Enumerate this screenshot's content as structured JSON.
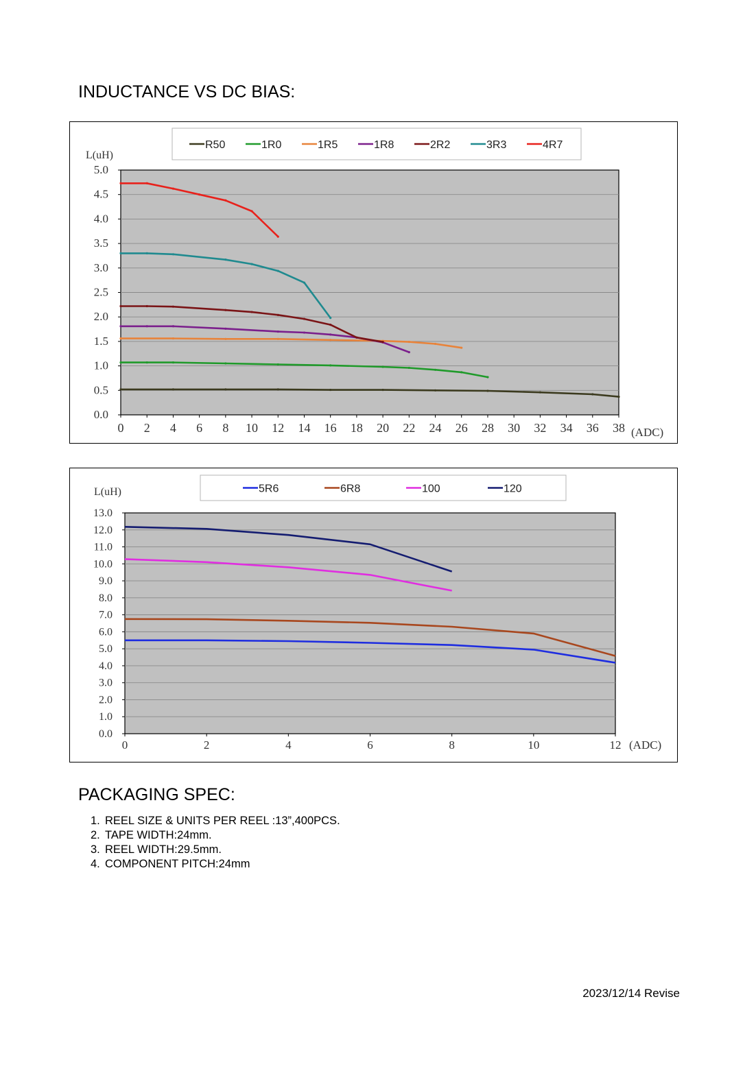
{
  "page": {
    "section1_title": "INDUCTANCE VS DC BIAS:",
    "section2_title": "PACKAGING SPEC:",
    "packaging_items": [
      {
        "num": "1.",
        "text": "REEL SIZE & UNITS PER REEL :13”,400PCS."
      },
      {
        "num": "2.",
        "text": "TAPE WIDTH:24mm."
      },
      {
        "num": "3.",
        "text": "REEL WIDTH:29.5mm."
      },
      {
        "num": "4.",
        "text": "COMPONENT PITCH:24mm"
      }
    ],
    "revise_note": "2023/12/14 Revise"
  },
  "chart_data": [
    {
      "type": "line",
      "ylabel": "L(uH)",
      "xlabel": "(ADC)",
      "xlim": [
        0,
        38
      ],
      "ylim": [
        0,
        5
      ],
      "x_ticks": [
        0,
        2,
        4,
        6,
        8,
        10,
        12,
        14,
        16,
        18,
        20,
        22,
        24,
        26,
        28,
        30,
        32,
        34,
        36,
        38
      ],
      "y_ticks": [
        "0.0",
        "0.5",
        "1.0",
        "1.5",
        "2.0",
        "2.5",
        "3.0",
        "3.5",
        "4.0",
        "4.5",
        "5.0"
      ],
      "grid": true,
      "plot_background": "#c0c0c0",
      "legend_position": "top",
      "series": [
        {
          "name": "R50",
          "color": "#3b3a1e",
          "x": [
            0,
            4,
            8,
            12,
            16,
            20,
            24,
            28,
            32,
            36,
            38
          ],
          "y": [
            0.52,
            0.52,
            0.52,
            0.52,
            0.51,
            0.51,
            0.5,
            0.49,
            0.46,
            0.42,
            0.37
          ]
        },
        {
          "name": "1R0",
          "color": "#1f9a2a",
          "x": [
            0,
            2,
            4,
            8,
            12,
            16,
            20,
            22,
            24,
            26,
            28
          ],
          "y": [
            1.07,
            1.07,
            1.07,
            1.05,
            1.03,
            1.01,
            0.98,
            0.96,
            0.92,
            0.87,
            0.77
          ]
        },
        {
          "name": "1R5",
          "color": "#e8833a",
          "x": [
            0,
            4,
            8,
            12,
            16,
            20,
            22,
            24,
            26
          ],
          "y": [
            1.56,
            1.56,
            1.55,
            1.55,
            1.53,
            1.51,
            1.49,
            1.45,
            1.37
          ]
        },
        {
          "name": "1R8",
          "color": "#7b1f8c",
          "x": [
            0,
            2,
            4,
            8,
            12,
            14,
            16,
            18,
            20,
            22
          ],
          "y": [
            1.81,
            1.81,
            1.81,
            1.76,
            1.7,
            1.68,
            1.64,
            1.58,
            1.48,
            1.28
          ]
        },
        {
          "name": "2R2",
          "color": "#7a1416",
          "x": [
            0,
            2,
            4,
            8,
            10,
            12,
            14,
            16,
            18,
            20
          ],
          "y": [
            2.22,
            2.22,
            2.21,
            2.14,
            2.1,
            2.04,
            1.96,
            1.84,
            1.58,
            1.49
          ]
        },
        {
          "name": "3R3",
          "color": "#1f8a8f",
          "x": [
            0,
            2,
            4,
            8,
            10,
            12,
            14,
            16
          ],
          "y": [
            3.3,
            3.3,
            3.28,
            3.17,
            3.08,
            2.94,
            2.7,
            1.98
          ]
        },
        {
          "name": "4R7",
          "color": "#e8211b",
          "x": [
            0,
            2,
            4,
            6,
            8,
            10,
            12
          ],
          "y": [
            4.73,
            4.73,
            4.62,
            4.5,
            4.38,
            4.16,
            3.64
          ]
        }
      ]
    },
    {
      "type": "line",
      "ylabel": "L(uH)",
      "xlabel": "(ADC)",
      "xlim": [
        0,
        12
      ],
      "ylim": [
        0,
        13
      ],
      "x_ticks": [
        0,
        2,
        4,
        6,
        8,
        10,
        12
      ],
      "y_ticks": [
        "0.0",
        "1.0",
        "2.0",
        "3.0",
        "4.0",
        "5.0",
        "6.0",
        "7.0",
        "8.0",
        "9.0",
        "10.0",
        "11.0",
        "12.0",
        "13.0"
      ],
      "grid": true,
      "plot_background": "#c0c0c0",
      "legend_position": "top",
      "series": [
        {
          "name": "5R6",
          "color": "#1e2de0",
          "x": [
            0,
            2,
            4,
            6,
            8,
            10,
            12
          ],
          "y": [
            5.5,
            5.5,
            5.45,
            5.35,
            5.22,
            4.95,
            4.18
          ]
        },
        {
          "name": "6R8",
          "color": "#a8471e",
          "x": [
            0,
            2,
            4,
            6,
            8,
            10,
            12
          ],
          "y": [
            6.75,
            6.74,
            6.65,
            6.53,
            6.3,
            5.9,
            4.58
          ]
        },
        {
          "name": "100",
          "color": "#e02ee0",
          "x": [
            0,
            2,
            4,
            6,
            8
          ],
          "y": [
            10.28,
            10.1,
            9.8,
            9.35,
            8.42
          ]
        },
        {
          "name": "120",
          "color": "#141c70",
          "x": [
            0,
            2,
            4,
            6,
            8
          ],
          "y": [
            12.18,
            12.06,
            11.7,
            11.15,
            9.55
          ]
        }
      ]
    }
  ]
}
